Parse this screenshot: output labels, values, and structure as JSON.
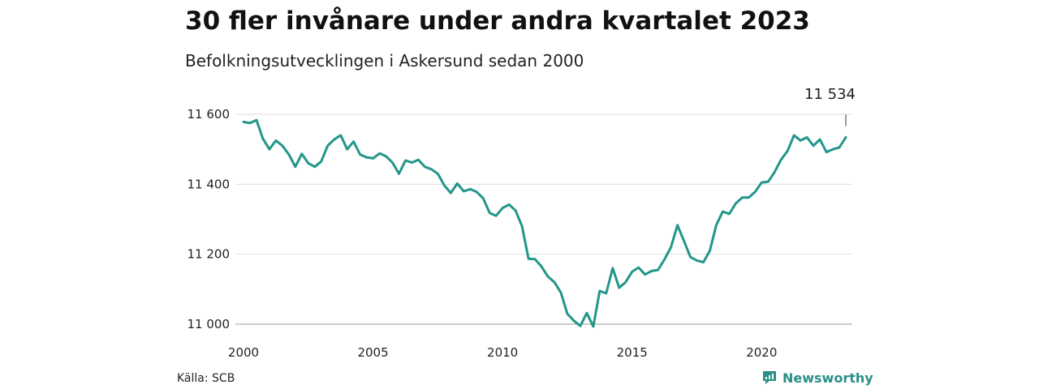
{
  "header": {
    "title": "30 fler invånare under andra kvartalet 2023",
    "subtitle": "Befolkningsutvecklingen i Askersund sedan 2000"
  },
  "footer": {
    "source": "Källa: SCB",
    "brand": "Newsworthy",
    "brand_icon": "newsworthy-logo-icon"
  },
  "colors": {
    "line": "#22968a",
    "grid": "#dddddd",
    "brand": "#2a8f86"
  },
  "chart_data": {
    "type": "line",
    "title": "30 fler invånare under andra kvartalet 2023",
    "subtitle": "Befolkningsutvecklingen i Askersund sedan 2000",
    "xlabel": "",
    "ylabel": "",
    "ylim": [
      11000,
      11600
    ],
    "xlim": [
      2000,
      2023.5
    ],
    "grid": true,
    "x_ticks": [
      {
        "value": 2000,
        "label": "2000"
      },
      {
        "value": 2005,
        "label": "2005"
      },
      {
        "value": 2010,
        "label": "2010"
      },
      {
        "value": 2015,
        "label": "2015"
      },
      {
        "value": 2020,
        "label": "2020"
      }
    ],
    "y_ticks": [
      {
        "value": 11000,
        "label": "11 000"
      },
      {
        "value": 11200,
        "label": "11 200"
      },
      {
        "value": 11400,
        "label": "11 400"
      },
      {
        "value": 11600,
        "label": "11 600"
      }
    ],
    "annotation": {
      "x": 2023.25,
      "y": 11534,
      "label": "11 534"
    },
    "series": [
      {
        "x": [
          2000.0,
          2000.25,
          2000.5,
          2000.75,
          2001.0,
          2001.25,
          2001.5,
          2001.75,
          2002.0,
          2002.25,
          2002.5,
          2002.75,
          2003.0,
          2003.25,
          2003.5,
          2003.75,
          2004.0,
          2004.25,
          2004.5,
          2004.75,
          2005.0,
          2005.25,
          2005.5,
          2005.75,
          2006.0,
          2006.25,
          2006.5,
          2006.75,
          2007.0,
          2007.25,
          2007.5,
          2007.75,
          2008.0,
          2008.25,
          2008.5,
          2008.75,
          2009.0,
          2009.25,
          2009.5,
          2009.75,
          2010.0,
          2010.25,
          2010.5,
          2010.75,
          2011.0,
          2011.25,
          2011.5,
          2011.75,
          2012.0,
          2012.25,
          2012.5,
          2012.75,
          2013.0,
          2013.25,
          2013.5,
          2013.75,
          2014.0,
          2014.25,
          2014.5,
          2014.75,
          2015.0,
          2015.25,
          2015.5,
          2015.75,
          2016.0,
          2016.25,
          2016.5,
          2016.75,
          2017.0,
          2017.25,
          2017.5,
          2017.75,
          2018.0,
          2018.25,
          2018.5,
          2018.75,
          2019.0,
          2019.25,
          2019.5,
          2019.75,
          2020.0,
          2020.25,
          2020.5,
          2020.75,
          2021.0,
          2021.25,
          2021.5,
          2021.75,
          2022.0,
          2022.25,
          2022.5,
          2022.75,
          2023.0,
          2023.25
        ],
        "values": [
          11578,
          11575,
          11583,
          11530,
          11500,
          11525,
          11510,
          11485,
          11450,
          11487,
          11460,
          11450,
          11465,
          11510,
          11528,
          11540,
          11500,
          11522,
          11485,
          11477,
          11474,
          11488,
          11480,
          11462,
          11430,
          11468,
          11462,
          11470,
          11450,
          11443,
          11430,
          11397,
          11375,
          11402,
          11380,
          11386,
          11378,
          11360,
          11318,
          11310,
          11332,
          11342,
          11325,
          11280,
          11187,
          11186,
          11165,
          11136,
          11120,
          11090,
          11030,
          11010,
          10995,
          11032,
          10993,
          11095,
          11088,
          11160,
          11104,
          11120,
          11150,
          11162,
          11142,
          11152,
          11155,
          11185,
          11220,
          11283,
          11238,
          11192,
          11182,
          11177,
          11210,
          11283,
          11322,
          11315,
          11345,
          11362,
          11362,
          11378,
          11405,
          11407,
          11435,
          11470,
          11495,
          11540,
          11525,
          11534,
          11510,
          11528,
          11492,
          11500,
          11505,
          11534
        ]
      }
    ]
  }
}
